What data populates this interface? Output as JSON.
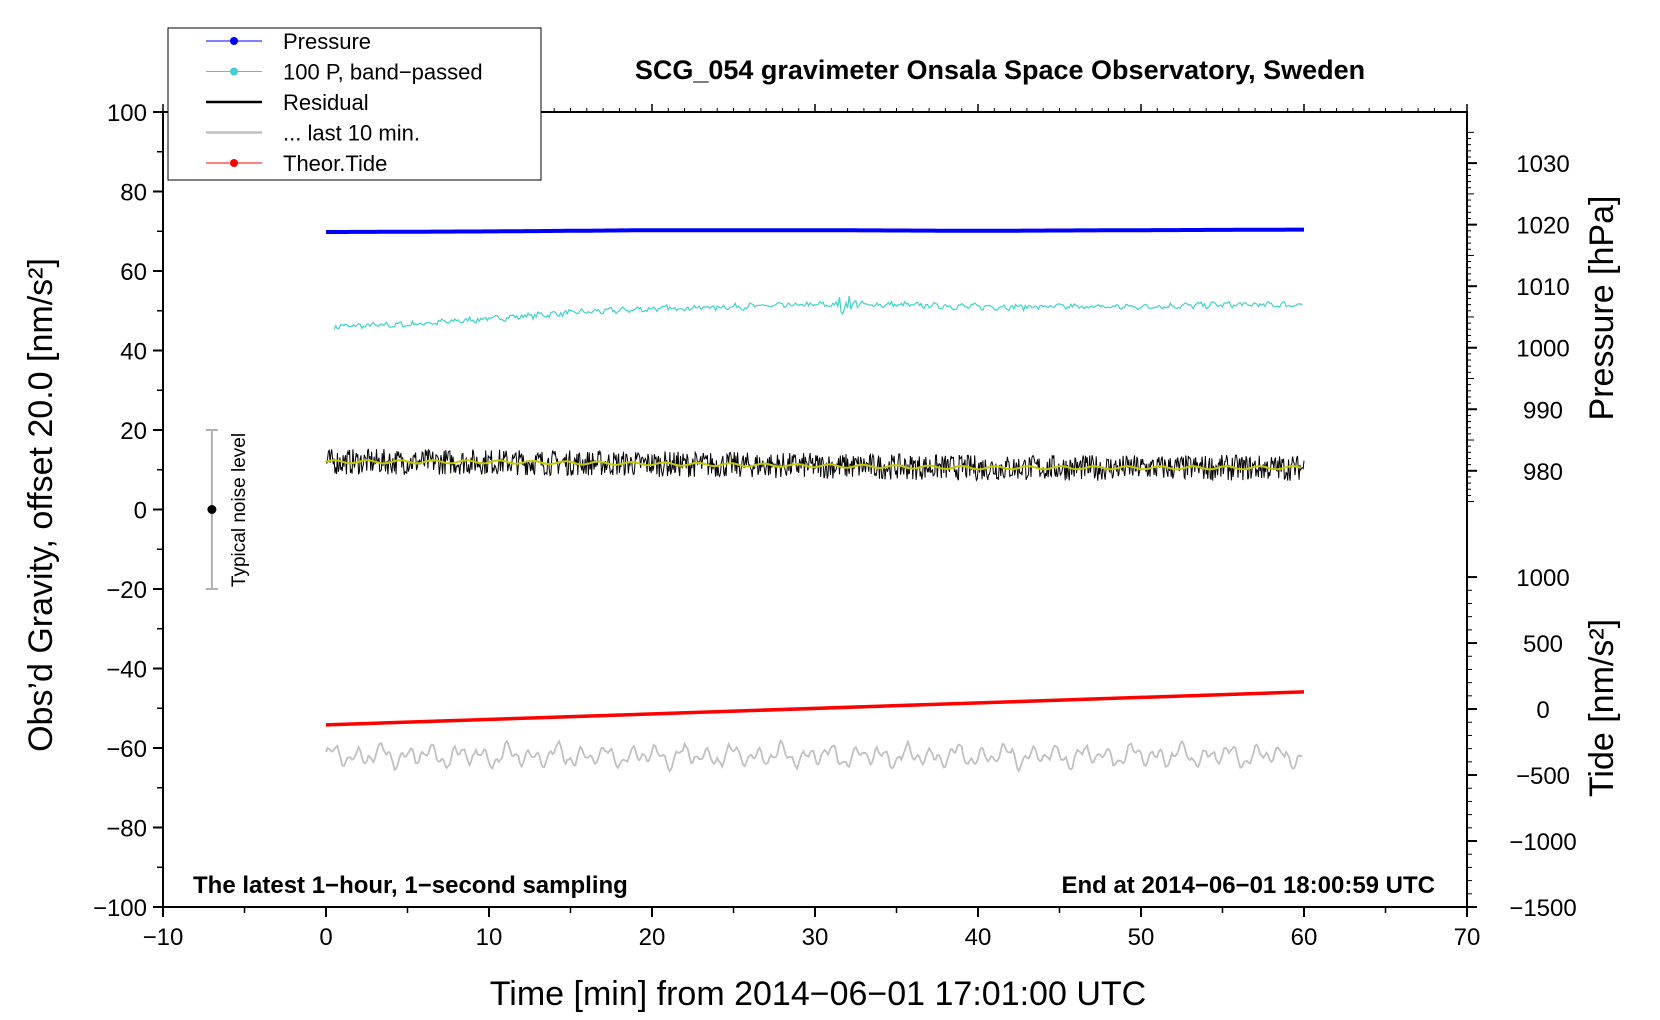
{
  "chart_data": {
    "type": "line",
    "title": "SCG_054 gravimeter Onsala Space Observatory, Sweden",
    "xlabel": "Time [min] from 2014−06−01 17:01:00 UTC",
    "ylabel": "Obs’d Gravity, offset 20.0 [nm/s²]",
    "ylabel_right_pressure": "Pressure [hPa]",
    "ylabel_right_tide": "Tide [nm/s²]",
    "xlim": [
      -10,
      70
    ],
    "ylim": [
      -100,
      100
    ],
    "xticks": [
      -10,
      0,
      10,
      20,
      30,
      40,
      50,
      60,
      70
    ],
    "xtick_labels": [
      "−10",
      "0",
      "10",
      "20",
      "30",
      "40",
      "50",
      "60",
      "70"
    ],
    "yticks": [
      -100,
      -80,
      -60,
      -40,
      -20,
      0,
      20,
      40,
      60,
      80,
      100
    ],
    "ytick_labels": [
      "−100",
      "−80",
      "−60",
      "−40",
      "−20",
      "0",
      "20",
      "40",
      "60",
      "80",
      "100"
    ],
    "pressure_axis": {
      "ticks": [
        980,
        990,
        1000,
        1010,
        1020,
        1030
      ],
      "tick_labels": [
        "980",
        "990",
        "1000",
        "1010",
        "1020",
        "1030"
      ],
      "anchor_value": 1000,
      "anchor_gravity": 40.7,
      "gravity_per_unit": 1.548
    },
    "tide_axis": {
      "ticks": [
        -1500,
        -1000,
        -500,
        0,
        500,
        1000
      ],
      "tick_labels": [
        "−1500",
        "−1000",
        "−500",
        "0",
        "500",
        "1000"
      ],
      "anchor_value": 0,
      "anchor_gravity": -50.2,
      "gravity_per_unit": 0.0332
    },
    "legend_position": "top-left",
    "legend": [
      {
        "label": "Pressure",
        "color": "#0000ff",
        "marker": true
      },
      {
        "label": "100 P, band−passed",
        "color": "#40d0d0",
        "marker": true
      },
      {
        "label": "Residual",
        "color": "#000000",
        "marker": false
      },
      {
        "label": "... last 10 min.",
        "color": "#c0c0c0",
        "marker": false
      },
      {
        "label": "Theor.Tide",
        "color": "#ff0000",
        "marker": true
      }
    ],
    "series": [
      {
        "name": "Pressure",
        "color": "#0000ff",
        "x": [
          0,
          10,
          20,
          30,
          40,
          50,
          60
        ],
        "y": [
          1018.8,
          1018.9,
          1019.1,
          1019.1,
          1019.0,
          1019.1,
          1019.2
        ]
      },
      {
        "name": "100 P, band−passed",
        "color": "#40d0d0",
        "x": [
          0,
          5,
          10,
          15,
          20,
          25,
          30,
          35,
          40,
          45,
          50,
          55,
          60
        ],
        "y": [
          46,
          46.5,
          48,
          49.5,
          50.5,
          51,
          51.5,
          51.5,
          51,
          51,
          51,
          51.5,
          51.5
        ]
      },
      {
        "name": "Residual",
        "color": "#000000",
        "x": [
          0,
          10,
          20,
          30,
          40,
          50,
          60
        ],
        "y": [
          12,
          12,
          11.5,
          11,
          10.5,
          10.5,
          10.5
        ]
      },
      {
        "name": "... last 10 min.",
        "color": "#c0c0c0",
        "x": [
          0,
          10,
          20,
          30,
          40,
          50,
          60
        ],
        "y": [
          -62,
          -62,
          -62,
          -62,
          -62,
          -62,
          -62
        ]
      },
      {
        "name": "Theor.Tide",
        "color": "#ff0000",
        "x": [
          0,
          60
        ],
        "y": [
          -120,
          130
        ]
      }
    ],
    "residual_smooth_color": "#c8c800",
    "noise_bar": {
      "x": -7,
      "center": 0,
      "low": -20,
      "high": 20,
      "label": "Typical noise level"
    },
    "annotations": {
      "left": "The latest 1−hour, 1−second sampling",
      "right": "End at 2014−06−01 18:00:59 UTC"
    }
  }
}
